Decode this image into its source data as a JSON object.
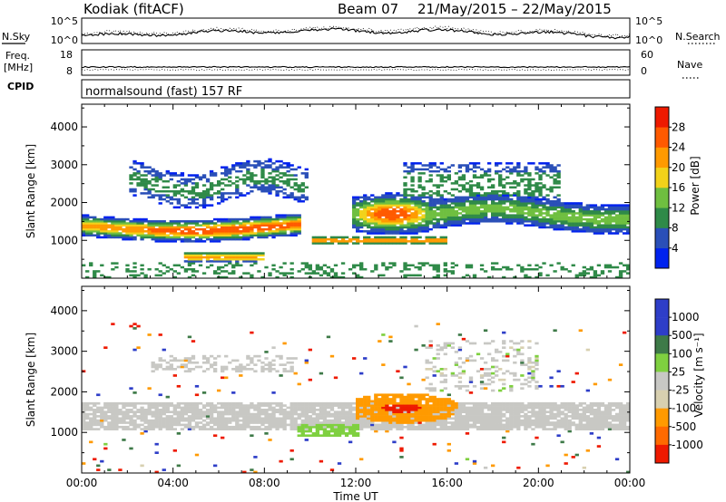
{
  "header": {
    "station": "Kodiak (fitACF)",
    "beam": "Beam 07",
    "dates": "21/May/2015 – 22/May/2015"
  },
  "sky_panel": {
    "left_label": "N.Sky",
    "right_label": "N.Search",
    "left_ticks": [
      "10^5",
      "10^0"
    ],
    "right_ticks": [
      "10^5",
      "10^0"
    ]
  },
  "freq_panel": {
    "left_label_1": "Freq.",
    "left_label_2": "[MHz]",
    "right_label": "Nave",
    "left_ticks": [
      "18",
      "8"
    ],
    "right_ticks": [
      "60",
      "0"
    ]
  },
  "cpid_panel": {
    "label": "CPID",
    "text": "normalsound (fast) 157 RF"
  },
  "colors": {
    "power": [
      "#0022ee",
      "#2a4fb8",
      "#2f8a48",
      "#6fbf40",
      "#f2d21a",
      "#ff9a00",
      "#ff5a00",
      "#ee1a00"
    ],
    "velocity": [
      "#2e3ec8",
      "#3e7a48",
      "#3fa03f",
      "#7fd040",
      "#c8c8c4",
      "#d8d0b0",
      "#ff9a00",
      "#ff6a00",
      "#ee1a00"
    ]
  },
  "chart_data": [
    {
      "type": "heatmap",
      "name": "power",
      "xlabel": "",
      "ylabel": "Slant Range [km]",
      "colorbar_label": "Power [dB]",
      "colorbar_ticks": [
        "28",
        "24",
        "20",
        "16",
        "12",
        "8",
        "4"
      ],
      "colorbar_range": [
        0,
        32
      ],
      "ylim": [
        0,
        4600
      ],
      "yticks": [
        "1000",
        "2000",
        "3000",
        "4000"
      ],
      "xticks": [
        "00:00",
        "04:00",
        "08:00",
        "12:00",
        "16:00",
        "20:00",
        "00:00"
      ],
      "features": [
        {
          "t": [
            0,
            9
          ],
          "r": [
            1200,
            1600
          ],
          "peak_power": 28
        },
        {
          "t": [
            5,
            7.5
          ],
          "r": [
            450,
            650
          ],
          "peak_power": 24
        },
        {
          "t": [
            12,
            15
          ],
          "r": [
            1300,
            2100
          ],
          "peak_power": 28
        },
        {
          "t": [
            10,
            16
          ],
          "r": [
            900,
            1100
          ],
          "peak_power": 28
        },
        {
          "t": [
            16,
            24
          ],
          "r": [
            1300,
            2200
          ],
          "peak_power": 14
        }
      ]
    },
    {
      "type": "heatmap",
      "name": "velocity",
      "xlabel": "Time UT",
      "ylabel": "Slant Range [km]",
      "colorbar_label": "Velocity [m s⁻¹]",
      "colorbar_ticks": [
        "1000",
        "500",
        "100",
        "25",
        "-25",
        "-100",
        "-500",
        "-1000"
      ],
      "colorbar_range": [
        -1000,
        1000
      ],
      "ylim": [
        0,
        4600
      ],
      "yticks": [
        "1000",
        "2000",
        "3000",
        "4000"
      ],
      "xticks": [
        "00:00",
        "04:00",
        "08:00",
        "12:00",
        "16:00",
        "20:00",
        "00:00"
      ],
      "features": [
        {
          "t": [
            0,
            24
          ],
          "r": [
            1100,
            1700
          ],
          "velocity": 0
        },
        {
          "t": [
            12,
            16.5
          ],
          "r": [
            1300,
            1900
          ],
          "velocity": -200
        },
        {
          "t": [
            9.5,
            12
          ],
          "r": [
            900,
            1200
          ],
          "velocity": 100
        }
      ]
    }
  ]
}
